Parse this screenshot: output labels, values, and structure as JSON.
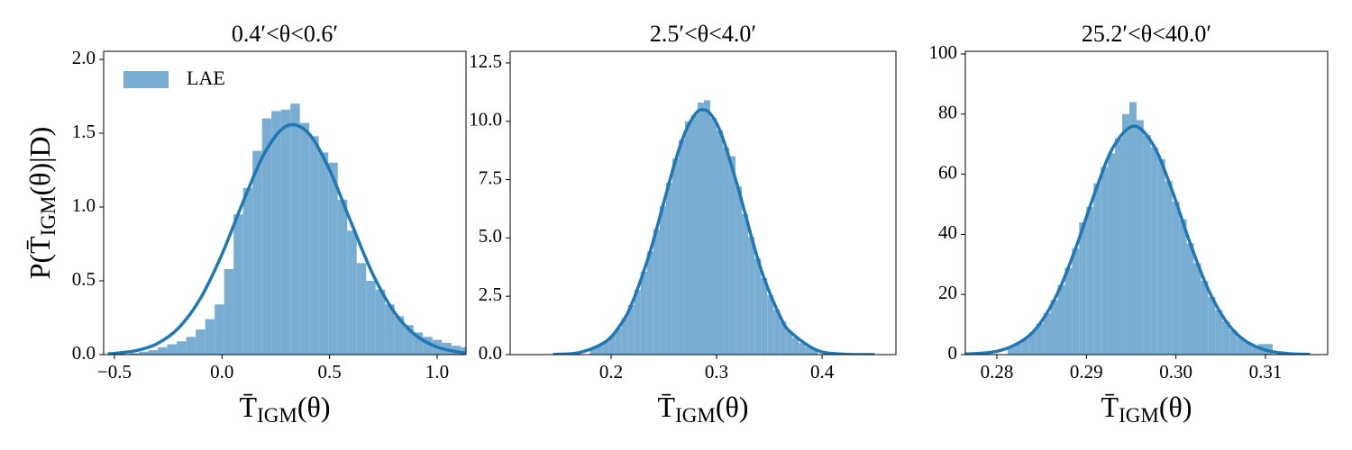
{
  "chart_data": [
    {
      "type": "histogram",
      "title": "0.4′<θ<0.6′",
      "xlabel": [
        "T̄",
        "IGM",
        "(θ)"
      ],
      "ylabel": [
        "P(T̄",
        "IGM",
        "(θ)|D)"
      ],
      "name": "LAE",
      "legend": "upper left",
      "color": "#79add2",
      "bins": [
        -0.43,
        -0.386,
        -0.342,
        -0.298,
        -0.254,
        -0.21,
        -0.166,
        -0.122,
        -0.078,
        -0.034,
        0.01,
        0.054,
        0.098,
        0.142,
        0.186,
        0.23,
        0.274,
        0.318,
        0.362,
        0.406,
        0.45,
        0.494,
        0.538,
        0.582,
        0.626,
        0.67,
        0.714,
        0.758,
        0.802,
        0.846,
        0.89,
        0.934,
        0.978,
        1.022,
        1.066,
        1.11,
        1.154
      ],
      "counts": [
        0.01,
        0.02,
        0.03,
        0.05,
        0.07,
        0.09,
        0.12,
        0.17,
        0.24,
        0.34,
        0.58,
        0.95,
        1.13,
        1.38,
        1.6,
        1.65,
        1.66,
        1.7,
        1.57,
        1.48,
        1.37,
        1.3,
        1.05,
        0.84,
        0.62,
        0.5,
        0.44,
        0.34,
        0.26,
        0.2,
        0.15,
        0.12,
        0.1,
        0.08,
        0.06,
        0.05
      ],
      "fit": {
        "color": "#1f77b4",
        "x": [
          -0.53,
          -0.5,
          -0.4,
          -0.3,
          -0.2,
          -0.1,
          0,
          0.1,
          0.2,
          0.3,
          0.4,
          0.5,
          0.6,
          0.7,
          0.8,
          0.9,
          1.0,
          1.1,
          1.13
        ],
        "values": [
          0.006,
          0.008,
          0.027,
          0.075,
          0.183,
          0.381,
          0.68,
          1.042,
          1.371,
          1.549,
          1.503,
          1.251,
          0.895,
          0.548,
          0.289,
          0.131,
          0.051,
          0.017,
          0.012
        ]
      },
      "xlim": [
        -0.55,
        1.134
      ],
      "ylim": [
        0,
        2.055
      ],
      "xticks": [
        {
          "value": -0.5,
          "label": "−0.5"
        },
        {
          "value": 0,
          "label": "0.0"
        },
        0.5,
        {
          "value": 1,
          "label": "1.0"
        }
      ],
      "yticks": [
        {
          "value": 0,
          "label": "0.0"
        },
        0.5,
        {
          "value": 1,
          "label": "1.0"
        },
        1.5,
        {
          "value": 2,
          "label": "2.0"
        }
      ]
    },
    {
      "type": "histogram",
      "title": "2.5′<θ<4.0′",
      "xlabel": [
        "T̄",
        "IGM",
        "(θ)"
      ],
      "color": "#79add2",
      "bins": [
        0.18,
        0.186,
        0.192,
        0.198,
        0.204,
        0.21,
        0.216,
        0.222,
        0.228,
        0.234,
        0.24,
        0.246,
        0.252,
        0.258,
        0.264,
        0.27,
        0.276,
        0.282,
        0.288,
        0.294,
        0.3,
        0.306,
        0.312,
        0.318,
        0.324,
        0.33,
        0.336,
        0.342,
        0.348,
        0.354,
        0.36,
        0.366,
        0.372,
        0.378,
        0.384,
        0.39,
        0.396
      ],
      "counts": [
        0.25,
        0.38,
        0.56,
        0.81,
        1.14,
        1.58,
        2.12,
        2.78,
        3.55,
        4.42,
        5.37,
        6.37,
        7.36,
        8.4,
        9.2,
        10.0,
        10.27,
        10.8,
        10.9,
        10.14,
        9.61,
        8.88,
        8.5,
        7.2,
        6.03,
        5.05,
        4.12,
        3.28,
        2.54,
        1.92,
        1.42,
        1.02,
        0.72,
        0.49,
        0.33,
        0.21
      ],
      "fit": {
        "color": "#1f77b4",
        "x": [
          0.145,
          0.17,
          0.195,
          0.21,
          0.22,
          0.235,
          0.245,
          0.26,
          0.27,
          0.28,
          0.287,
          0.295,
          0.305,
          0.32,
          0.335,
          0.345,
          0.36,
          0.37,
          0.395,
          0.42,
          0.45
        ],
        "values": [
          0.01,
          0.09,
          0.56,
          1.35,
          2.22,
          4.12,
          5.7,
          8.16,
          9.5,
          10.32,
          10.5,
          10.27,
          9.39,
          7.2,
          4.73,
          3.28,
          1.66,
          0.97,
          0.19,
          0.02,
          0
        ]
      },
      "xlim": [
        0.1043,
        0.47
      ],
      "ylim": [
        0,
        13.0
      ],
      "xticks": [
        0.2,
        0.3,
        0.4
      ],
      "yticks": [
        {
          "value": 0,
          "label": "0.0"
        },
        2.5,
        {
          "value": 5,
          "label": "5.0"
        },
        7.5,
        {
          "value": 10,
          "label": "10.0"
        },
        12.5
      ]
    },
    {
      "type": "histogram",
      "title": "25.2′<θ<40.0′",
      "xlabel": [
        "T̄",
        "IGM",
        "(θ)"
      ],
      "color": "#79add2",
      "bins": [
        0.2812,
        0.282,
        0.2828,
        0.2836,
        0.2844,
        0.2852,
        0.286,
        0.2868,
        0.2876,
        0.2884,
        0.2892,
        0.29,
        0.2908,
        0.2916,
        0.2924,
        0.2932,
        0.294,
        0.2948,
        0.2956,
        0.2964,
        0.2972,
        0.298,
        0.2988,
        0.2996,
        0.3004,
        0.3012,
        0.302,
        0.3028,
        0.3036,
        0.3044,
        0.3052,
        0.306,
        0.3068,
        0.3076,
        0.3084,
        0.3092,
        0.31,
        0.3108
      ],
      "counts": [
        2.5,
        3.7,
        5.3,
        7.5,
        10.3,
        13.8,
        18.1,
        23.1,
        28.9,
        35.3,
        44,
        49.1,
        57,
        62.4,
        67,
        72,
        80,
        84,
        78,
        73,
        69,
        65,
        57.7,
        50.9,
        45,
        37,
        30.4,
        24.5,
        19.2,
        14.8,
        11.1,
        8.1,
        5.8,
        4.1,
        2.8,
        3.5,
        3.5
      ],
      "fit": {
        "color": "#1f77b4",
        "x": [
          0.276,
          0.28,
          0.283,
          0.285,
          0.287,
          0.289,
          0.291,
          0.293,
          0.2953,
          0.2975,
          0.2995,
          0.3015,
          0.3035,
          0.3055,
          0.3075,
          0.31,
          0.3125,
          0.315
        ],
        "values": [
          0.09,
          1.09,
          4.9,
          11.1,
          21.8,
          37.0,
          54.3,
          69.0,
          76,
          69.6,
          55.2,
          37.8,
          22.4,
          11.5,
          5.1,
          1.5,
          0.35,
          0.07
        ]
      },
      "xlim": [
        0.27648,
        0.31695
      ],
      "ylim": [
        0,
        100.9
      ],
      "xticks": [
        0.28,
        0.29,
        {
          "value": 0.3,
          "label": "0.30"
        },
        0.31
      ],
      "yticks": [
        0,
        20,
        40,
        60,
        80,
        100
      ]
    }
  ]
}
